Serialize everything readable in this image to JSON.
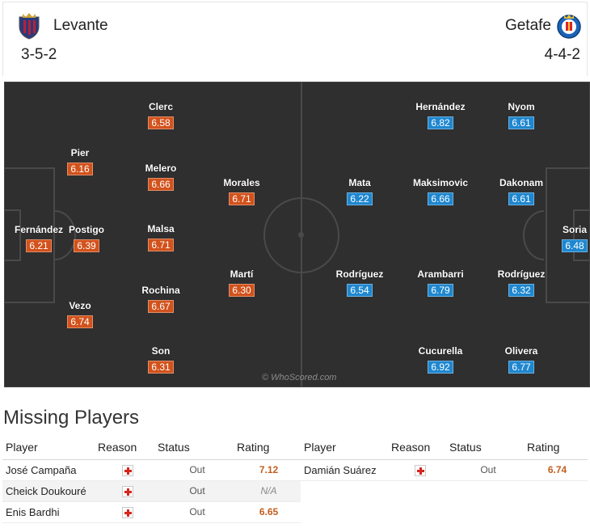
{
  "header": {
    "home_team": "Levante",
    "away_team": "Getafe",
    "home_formation": "3-5-2",
    "away_formation": "4-4-2",
    "home_crest_icon": "levante-crest-icon",
    "away_crest_icon": "getafe-crest-icon"
  },
  "colors": {
    "home_rating": "#d2521c",
    "away_rating": "#1f87cf",
    "pitch": "#2f2f2f"
  },
  "pitch": {
    "watermark": "© WhoScored.com",
    "home_players": [
      {
        "name": "Fernández",
        "rating": "6.21"
      },
      {
        "name": "Pier",
        "rating": "6.16"
      },
      {
        "name": "Postigo",
        "rating": "6.39"
      },
      {
        "name": "Vezo",
        "rating": "6.74"
      },
      {
        "name": "Clerc",
        "rating": "6.58"
      },
      {
        "name": "Melero",
        "rating": "6.66"
      },
      {
        "name": "Malsa",
        "rating": "6.71"
      },
      {
        "name": "Rochina",
        "rating": "6.67"
      },
      {
        "name": "Son",
        "rating": "6.31"
      },
      {
        "name": "Morales",
        "rating": "6.71"
      },
      {
        "name": "Martí",
        "rating": "6.30"
      }
    ],
    "away_players": [
      {
        "name": "Hernández",
        "rating": "6.82"
      },
      {
        "name": "Nyom",
        "rating": "6.61"
      },
      {
        "name": "Mata",
        "rating": "6.22"
      },
      {
        "name": "Maksimovic",
        "rating": "6.66"
      },
      {
        "name": "Dakonam",
        "rating": "6.61"
      },
      {
        "name": "Soria",
        "rating": "6.48"
      },
      {
        "name": "Rodríguez",
        "rating": "6.54"
      },
      {
        "name": "Arambarri",
        "rating": "6.79"
      },
      {
        "name": "Rodríguez",
        "rating": "6.32"
      },
      {
        "name": "Cucurella",
        "rating": "6.92"
      },
      {
        "name": "Olivera",
        "rating": "6.77"
      }
    ]
  },
  "missing": {
    "title": "Missing Players",
    "columns": {
      "player": "Player",
      "reason": "Reason",
      "status": "Status",
      "rating": "Rating"
    },
    "home": [
      {
        "player": "José Campaña",
        "reason_icon": "injury-icon",
        "status": "Out",
        "rating": "7.12"
      },
      {
        "player": "Cheick Doukouré",
        "reason_icon": "injury-icon",
        "status": "Out",
        "rating": "N/A"
      },
      {
        "player": "Enis Bardhi",
        "reason_icon": "injury-icon",
        "status": "Out",
        "rating": "6.65"
      }
    ],
    "away": [
      {
        "player": "Damián Suárez",
        "reason_icon": "injury-icon",
        "status": "Out",
        "rating": "6.74"
      }
    ]
  }
}
